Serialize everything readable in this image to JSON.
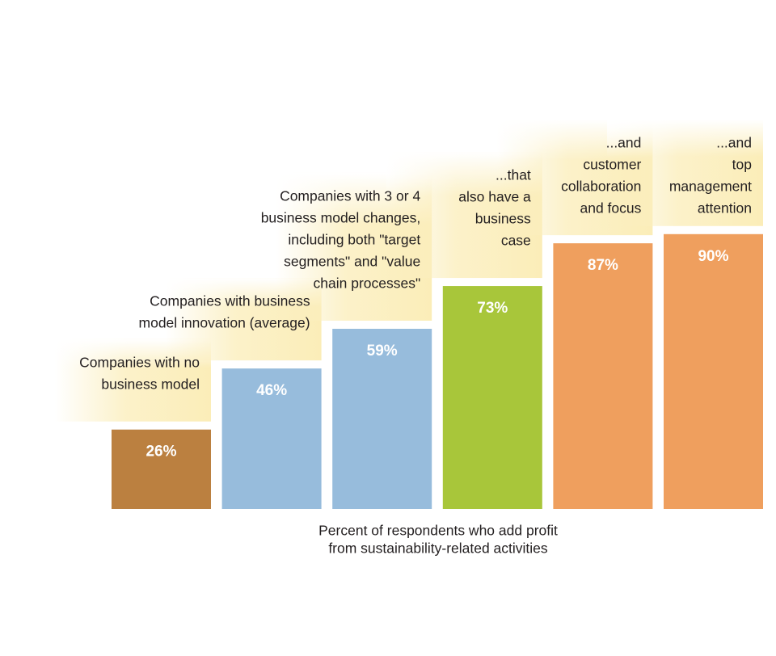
{
  "chart_data": {
    "type": "bar",
    "categories": [
      [
        "Companies with no",
        "business model"
      ],
      [
        "Companies with business",
        "model innovation (average)"
      ],
      [
        "Companies with 3 or 4",
        "business model changes,",
        "including both \"target",
        "segments\"  and \"value",
        "chain processes\""
      ],
      [
        "...that",
        "also have a",
        "business",
        "case"
      ],
      [
        "...and",
        "customer",
        "collaboration",
        "and focus"
      ],
      [
        "...and",
        "top",
        "management",
        "attention"
      ]
    ],
    "values": [
      26,
      46,
      59,
      73,
      87,
      90
    ],
    "value_labels": [
      "26%",
      "46%",
      "59%",
      "73%",
      "87%",
      "90%"
    ],
    "colors": [
      "#bb8040",
      "#97bcdc",
      "#97bcdc",
      "#a8c63a",
      "#ef9f5e",
      "#ef9f5e"
    ],
    "x_label": [
      "Percent of respondents who add profit",
      "from sustainability-related activities"
    ]
  }
}
